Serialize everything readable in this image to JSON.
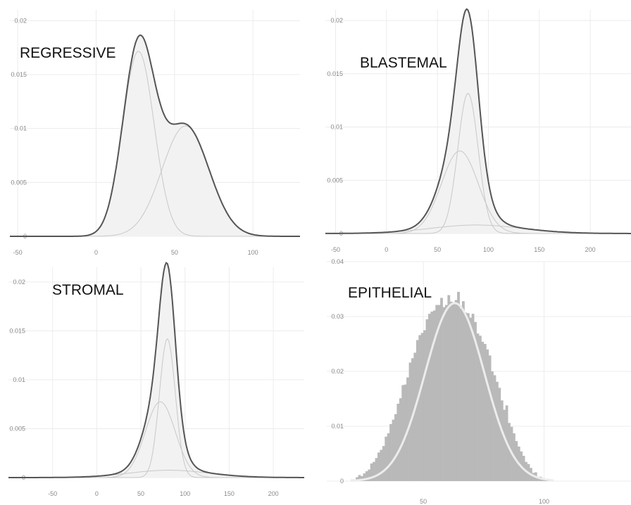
{
  "chart_data": [
    {
      "type": "area",
      "title": "REGRESSIVE",
      "xlim": [
        -55,
        130
      ],
      "ylim": [
        0,
        0.021
      ],
      "x_ticks": [
        -50,
        0,
        50,
        100
      ],
      "y_ticks": [
        0,
        0.005,
        0.01,
        0.015,
        0.02
      ],
      "x_tick_labels": [
        "-50",
        "0",
        "50",
        "100"
      ],
      "y_tick_labels": [
        "0",
        "0.005",
        "0.01",
        "0.015",
        "0.02"
      ],
      "grid": true,
      "components": [
        {
          "mean": 27,
          "sd": 10,
          "weight": 0.43
        },
        {
          "mean": 57,
          "sd": 15,
          "weight": 0.385
        }
      ],
      "x_range": [
        -55,
        130
      ]
    },
    {
      "type": "area",
      "title": "BLASTEMAL",
      "xlim": [
        -60,
        240
      ],
      "ylim": [
        0,
        0.021
      ],
      "x_ticks": [
        -50,
        0,
        50,
        100,
        150,
        200
      ],
      "y_ticks": [
        0,
        0.005,
        0.01,
        0.015,
        0.02
      ],
      "x_tick_labels": [
        "-50",
        "0",
        "50",
        "100",
        "150",
        "200"
      ],
      "y_tick_labels": [
        "0",
        "0.005",
        "0.01",
        "0.015",
        "0.02"
      ],
      "grid": true,
      "components": [
        {
          "mean": 80,
          "sd": 10,
          "weight": 0.33
        },
        {
          "mean": 72,
          "sd": 18,
          "weight": 0.35
        },
        {
          "mean": 88,
          "sd": 45,
          "weight": 0.09
        }
      ],
      "x_range": [
        -60,
        240
      ]
    },
    {
      "type": "area",
      "title": "STROMAL",
      "xlim": [
        -100,
        235
      ],
      "ylim": [
        0,
        0.0215
      ],
      "x_ticks": [
        -50,
        0,
        50,
        100,
        150,
        200
      ],
      "y_ticks": [
        0,
        0.005,
        0.01,
        0.015,
        0.02
      ],
      "x_tick_labels": [
        "-50",
        "0",
        "50",
        "100",
        "150",
        "200"
      ],
      "y_tick_labels": [
        "0",
        "0.005",
        "0.01",
        "0.015",
        "0.02"
      ],
      "grid": true,
      "components": [
        {
          "mean": 80,
          "sd": 9,
          "weight": 0.32
        },
        {
          "mean": 72,
          "sd": 17,
          "weight": 0.33
        },
        {
          "mean": 82,
          "sd": 45,
          "weight": 0.085
        }
      ],
      "x_range": [
        -100,
        235
      ]
    },
    {
      "type": "bar",
      "subtype": "histogram_with_density",
      "title": "EPITHELIAL",
      "xlim": [
        10,
        136
      ],
      "ylim": [
        0,
        0.04
      ],
      "x_ticks": [
        50,
        100
      ],
      "y_ticks": [
        0,
        0.01,
        0.02,
        0.03,
        0.04
      ],
      "x_tick_labels": [
        "50",
        "100"
      ],
      "y_tick_labels": [
        "0",
        "0.01",
        "0.02",
        "0.03",
        "0.04"
      ],
      "grid": true,
      "bin_width": 1,
      "bins_x_start": 20,
      "bin_values": [
        0.0003,
        0.0003,
        0.0007,
        0.0011,
        0.0009,
        0.0014,
        0.0018,
        0.0021,
        0.0032,
        0.0035,
        0.0042,
        0.0052,
        0.0057,
        0.0064,
        0.0081,
        0.0087,
        0.0104,
        0.0112,
        0.0122,
        0.0141,
        0.0151,
        0.0175,
        0.0176,
        0.0189,
        0.0216,
        0.0224,
        0.0234,
        0.0257,
        0.0266,
        0.027,
        0.0275,
        0.0295,
        0.0305,
        0.0309,
        0.0311,
        0.0321,
        0.0321,
        0.0334,
        0.0317,
        0.0321,
        0.0339,
        0.0327,
        0.0325,
        0.033,
        0.0345,
        0.0315,
        0.0328,
        0.0307,
        0.0306,
        0.0298,
        0.0305,
        0.029,
        0.0269,
        0.0265,
        0.0254,
        0.025,
        0.024,
        0.0229,
        0.02,
        0.0193,
        0.0181,
        0.017,
        0.0147,
        0.013,
        0.0138,
        0.0106,
        0.0099,
        0.0087,
        0.0073,
        0.0063,
        0.0054,
        0.0046,
        0.0035,
        0.0031,
        0.0024,
        0.0015,
        0.0016,
        0.0008,
        0.0008,
        0.0004,
        0.0004,
        0.0004,
        0.0002,
        0.0
      ],
      "density": {
        "mean": 63,
        "sd": 12.3
      }
    }
  ]
}
